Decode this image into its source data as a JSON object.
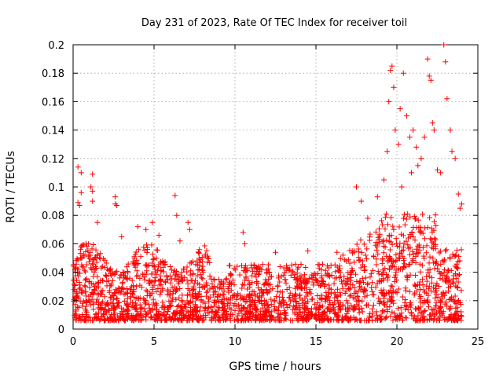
{
  "chart_data": {
    "type": "scatter",
    "title": "Day 231 of 2023, Rate Of TEC Index for receiver toil",
    "xlabel": "GPS time / hours",
    "ylabel": "ROTI / TECUs",
    "xlim": [
      0,
      25
    ],
    "ylim": [
      0,
      0.2
    ],
    "xticks": [
      0,
      5,
      10,
      15,
      20,
      25
    ],
    "xtick_labels": [
      "0",
      "5",
      "10",
      "15",
      "20",
      "25"
    ],
    "yticks": [
      0,
      0.02,
      0.04,
      0.06,
      0.08,
      0.1,
      0.12,
      0.14,
      0.16,
      0.18,
      0.2
    ],
    "ytick_labels": [
      "0",
      "0.02",
      "0.04",
      "0.06",
      "0.08",
      "0.1",
      "0.12",
      "0.14",
      "0.16",
      "0.18",
      "0.2"
    ],
    "grid": true,
    "marker": "+",
    "marker_color": "#ff0000",
    "data_x_range": [
      0,
      24
    ],
    "series": [
      {
        "name": "ROTI",
        "points": [
          [
            0.3,
            0.114
          ],
          [
            0.5,
            0.11
          ],
          [
            0.5,
            0.096
          ],
          [
            0.3,
            0.089
          ],
          [
            0.4,
            0.087
          ],
          [
            1.2,
            0.109
          ],
          [
            1.1,
            0.1
          ],
          [
            1.2,
            0.097
          ],
          [
            1.2,
            0.09
          ],
          [
            1.5,
            0.075
          ],
          [
            2.6,
            0.093
          ],
          [
            2.6,
            0.088
          ],
          [
            2.7,
            0.087
          ],
          [
            3.0,
            0.065
          ],
          [
            4.0,
            0.072
          ],
          [
            4.5,
            0.07
          ],
          [
            4.9,
            0.075
          ],
          [
            5.3,
            0.066
          ],
          [
            6.3,
            0.094
          ],
          [
            6.4,
            0.08
          ],
          [
            7.1,
            0.075
          ],
          [
            7.2,
            0.07
          ],
          [
            6.6,
            0.062
          ],
          [
            9.0,
            0.035
          ],
          [
            10.5,
            0.068
          ],
          [
            10.6,
            0.06
          ],
          [
            11.0,
            0.045
          ],
          [
            12.5,
            0.054
          ],
          [
            13.5,
            0.045
          ],
          [
            14.5,
            0.055
          ],
          [
            16.3,
            0.054
          ],
          [
            17.5,
            0.1
          ],
          [
            17.8,
            0.09
          ],
          [
            18.2,
            0.078
          ],
          [
            18.8,
            0.093
          ],
          [
            19.2,
            0.105
          ],
          [
            19.4,
            0.125
          ],
          [
            19.5,
            0.16
          ],
          [
            19.6,
            0.182
          ],
          [
            19.7,
            0.185
          ],
          [
            19.8,
            0.17
          ],
          [
            19.9,
            0.14
          ],
          [
            20.1,
            0.13
          ],
          [
            20.2,
            0.155
          ],
          [
            20.4,
            0.18
          ],
          [
            20.6,
            0.15
          ],
          [
            20.8,
            0.135
          ],
          [
            21.0,
            0.14
          ],
          [
            21.3,
            0.115
          ],
          [
            21.5,
            0.12
          ],
          [
            21.7,
            0.135
          ],
          [
            21.9,
            0.19
          ],
          [
            22.0,
            0.178
          ],
          [
            22.1,
            0.175
          ],
          [
            22.2,
            0.145
          ],
          [
            22.3,
            0.14
          ],
          [
            22.5,
            0.112
          ],
          [
            22.7,
            0.11
          ],
          [
            22.9,
            0.2
          ],
          [
            23.0,
            0.188
          ],
          [
            23.1,
            0.162
          ],
          [
            23.3,
            0.14
          ],
          [
            23.4,
            0.125
          ],
          [
            23.6,
            0.12
          ],
          [
            23.8,
            0.095
          ],
          [
            23.9,
            0.085
          ],
          [
            24.0,
            0.088
          ],
          [
            21.2,
            0.128
          ],
          [
            20.9,
            0.11
          ],
          [
            20.3,
            0.1
          ]
        ]
      }
    ]
  }
}
